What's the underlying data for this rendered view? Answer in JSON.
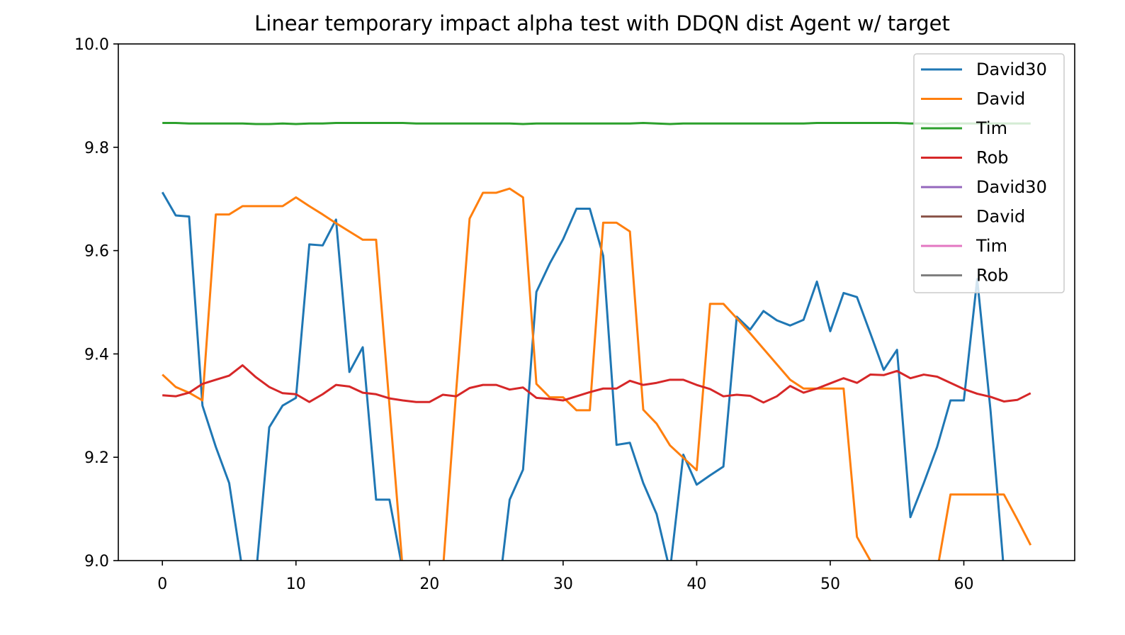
{
  "chart_data": {
    "type": "line",
    "title": "Linear temporary impact alpha test with DDQN dist Agent w/ target",
    "xlabel": "",
    "ylabel": "",
    "xlim": [
      -3.3,
      68.3
    ],
    "ylim": [
      9.0,
      10.0
    ],
    "xticks": [
      0,
      10,
      20,
      30,
      40,
      50,
      60
    ],
    "yticks": [
      9.0,
      9.2,
      9.4,
      9.6,
      9.8,
      10.0
    ],
    "xtick_labels": [
      "0",
      "10",
      "20",
      "30",
      "40",
      "50",
      "60"
    ],
    "ytick_labels": [
      "9.0",
      "9.2",
      "9.4",
      "9.6",
      "9.8",
      "10.0"
    ],
    "grid": false,
    "legend_position": "top-right",
    "series": [
      {
        "name": "David30",
        "color": "#1f77b4",
        "values": [
          9.713,
          9.668,
          9.666,
          9.3,
          9.22,
          9.15,
          8.98,
          8.97,
          9.258,
          9.3,
          9.315,
          9.612,
          9.61,
          9.66,
          9.365,
          9.413,
          9.118,
          9.118,
          8.98,
          8.9,
          8.9,
          8.9,
          8.9,
          8.9,
          8.9,
          8.9,
          9.118,
          9.176,
          9.52,
          9.575,
          9.622,
          9.681,
          9.681,
          9.59,
          9.224,
          9.228,
          9.15,
          9.09,
          8.98,
          9.205,
          9.147,
          9.165,
          9.182,
          9.472,
          9.447,
          9.483,
          9.465,
          9.455,
          9.466,
          9.54,
          9.444,
          9.518,
          9.51,
          9.44,
          9.369,
          9.408,
          9.084,
          9.15,
          9.22,
          9.31,
          9.31,
          9.545,
          9.29,
          8.98,
          8.9,
          8.9
        ]
      },
      {
        "name": "David",
        "color": "#ff7f0e",
        "values": [
          9.36,
          9.336,
          9.325,
          9.31,
          9.67,
          9.67,
          9.686,
          9.686,
          9.686,
          9.686,
          9.703,
          9.686,
          9.67,
          9.653,
          9.637,
          9.621,
          9.621,
          9.3,
          8.98,
          8.9,
          8.9,
          8.98,
          9.33,
          9.662,
          9.712,
          9.712,
          9.72,
          9.703,
          9.342,
          9.316,
          9.316,
          9.291,
          9.291,
          9.654,
          9.654,
          9.637,
          9.292,
          9.265,
          9.223,
          9.199,
          9.175,
          9.497,
          9.497,
          9.469,
          9.44,
          9.41,
          9.38,
          9.35,
          9.333,
          9.333,
          9.333,
          9.333,
          9.046,
          9.0,
          8.9,
          8.9,
          8.9,
          8.9,
          8.98,
          9.128,
          9.128,
          9.128,
          9.128,
          9.128,
          9.08,
          9.03
        ]
      },
      {
        "name": "Tim",
        "color": "#2ca02c",
        "values": [
          9.847,
          9.847,
          9.846,
          9.846,
          9.846,
          9.846,
          9.846,
          9.845,
          9.845,
          9.846,
          9.845,
          9.846,
          9.846,
          9.847,
          9.847,
          9.847,
          9.847,
          9.847,
          9.847,
          9.846,
          9.846,
          9.846,
          9.846,
          9.846,
          9.846,
          9.846,
          9.846,
          9.845,
          9.846,
          9.846,
          9.846,
          9.846,
          9.846,
          9.846,
          9.846,
          9.846,
          9.847,
          9.846,
          9.845,
          9.846,
          9.846,
          9.846,
          9.846,
          9.846,
          9.846,
          9.846,
          9.846,
          9.846,
          9.846,
          9.847,
          9.847,
          9.847,
          9.847,
          9.847,
          9.847,
          9.847,
          9.846,
          9.846,
          9.845,
          9.846,
          9.846,
          9.846,
          9.846,
          9.846,
          9.846,
          9.846
        ]
      },
      {
        "name": "Rob",
        "color": "#d62728",
        "values": [
          9.32,
          9.318,
          9.325,
          9.342,
          9.35,
          9.358,
          9.378,
          9.355,
          9.336,
          9.324,
          9.322,
          9.307,
          9.322,
          9.34,
          9.337,
          9.325,
          9.322,
          9.314,
          9.31,
          9.307,
          9.307,
          9.321,
          9.318,
          9.334,
          9.34,
          9.34,
          9.331,
          9.335,
          9.315,
          9.313,
          9.31,
          9.318,
          9.326,
          9.333,
          9.333,
          9.348,
          9.34,
          9.344,
          9.35,
          9.35,
          9.34,
          9.332,
          9.318,
          9.321,
          9.319,
          9.306,
          9.318,
          9.338,
          9.325,
          9.333,
          9.343,
          9.353,
          9.344,
          9.36,
          9.359,
          9.367,
          9.353,
          9.36,
          9.356,
          9.344,
          9.332,
          9.323,
          9.317,
          9.308,
          9.311,
          9.324
        ]
      },
      {
        "name": "David30",
        "color": "#9467bd",
        "values": []
      },
      {
        "name": "David",
        "color": "#8c564b",
        "values": []
      },
      {
        "name": "Tim",
        "color": "#e377c2",
        "values": []
      },
      {
        "name": "Rob",
        "color": "#7f7f7f",
        "values": []
      }
    ]
  }
}
